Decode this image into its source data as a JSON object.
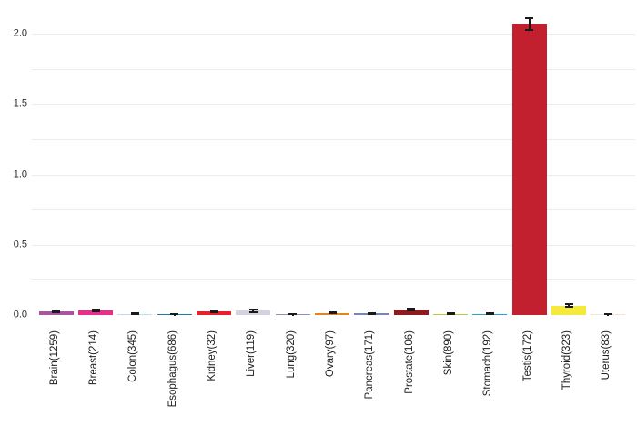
{
  "chart_data": {
    "type": "bar",
    "title": "",
    "xlabel": "",
    "ylabel": "",
    "categories": [
      "Brain(1259)",
      "Breast(214)",
      "Colon(345)",
      "Esophagus(686)",
      "Kidney(32)",
      "Liver(119)",
      "Lung(320)",
      "Ovary(97)",
      "Pancreas(171)",
      "Prostate(106)",
      "Skin(890)",
      "Stomach(192)",
      "Testis(172)",
      "Thyroid(323)",
      "Uterus(83)"
    ],
    "values": [
      0.025,
      0.032,
      0.009,
      0.007,
      0.024,
      0.03,
      0.006,
      0.016,
      0.011,
      0.038,
      0.008,
      0.01,
      2.07,
      0.068,
      0.006
    ],
    "error_bars": [
      0.006,
      0.005,
      0.003,
      0.002,
      0.007,
      0.008,
      0.002,
      0.004,
      0.004,
      0.008,
      0.003,
      0.003,
      0.04,
      0.008,
      0.002
    ],
    "bar_colors": [
      "#a8549e",
      "#ec2c8c",
      "#b5def2",
      "#1c7cb8",
      "#e8202c",
      "#d4d2e0",
      "#a287c6",
      "#e2851e",
      "#7287b5",
      "#8c1a1e",
      "#bacc3a",
      "#1fa7de",
      "#c2202f",
      "#f5ea3c",
      "#f8e3d3"
    ],
    "error_bar_color": "#1a1a1a",
    "ylim": [
      0,
      2.176
    ],
    "yticks": [
      0.0,
      0.5,
      1.0,
      1.5,
      2.0
    ],
    "ytick_labels": [
      "0.0",
      "0.5",
      "1.0",
      "1.5",
      "2.0"
    ],
    "grid": true,
    "grid_step": 0.25,
    "gridline_color": "#ececec",
    "background": "#ffffff",
    "legend": false
  }
}
